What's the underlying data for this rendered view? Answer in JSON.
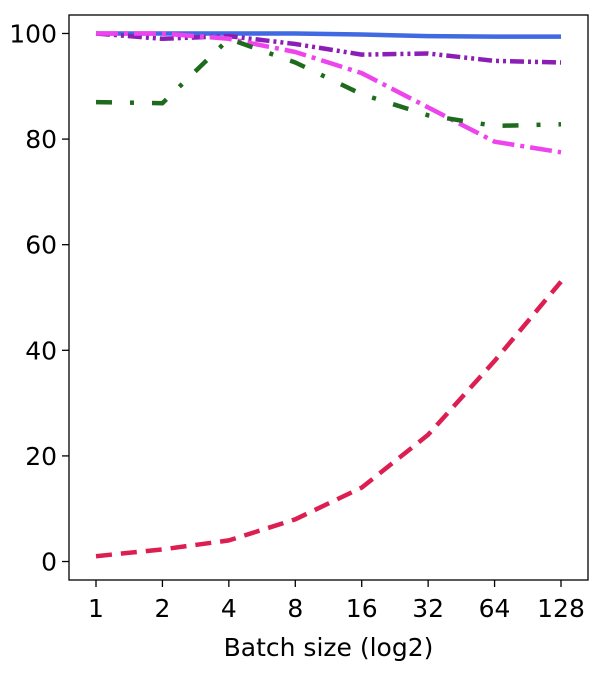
{
  "chart_data": {
    "type": "line",
    "title": "",
    "xlabel": "Batch size (log2)",
    "ylabel": "",
    "x_scale": "log2",
    "x": [
      1,
      2,
      4,
      8,
      16,
      32,
      64,
      128
    ],
    "x_tick_labels": [
      "1",
      "2",
      "4",
      "8",
      "16",
      "32",
      "64",
      "128"
    ],
    "ylim": [
      -3.5,
      103.5
    ],
    "y_ticks": [
      0,
      20,
      40,
      60,
      80,
      100
    ],
    "y_tick_labels": [
      "0",
      "20",
      "40",
      "60",
      "80",
      "100"
    ],
    "grid": false,
    "legend": "none",
    "series": [
      {
        "color": "#4169e1",
        "dash": "solid",
        "values": [
          100,
          100,
          100,
          100,
          99.8,
          99.5,
          99.4,
          99.4
        ]
      },
      {
        "color": "#8b1fb5",
        "dash": "dash-dot-dot",
        "values": [
          100,
          99,
          99.5,
          98,
          96,
          96.2,
          94.8,
          94.5
        ]
      },
      {
        "color": "#ee44ee",
        "dash": "dash-dot",
        "values": [
          100,
          100,
          99,
          96.5,
          92.5,
          86,
          79.5,
          77.5
        ]
      },
      {
        "color": "#1e6b1e",
        "dash": "dash-dot-sparse",
        "values": [
          87,
          86.8,
          99,
          94.5,
          88.5,
          84.5,
          82.5,
          82.8
        ]
      },
      {
        "color": "#dc1e50",
        "dash": "dashed",
        "values": [
          1,
          2.3,
          4,
          8,
          14,
          24,
          38,
          53
        ]
      }
    ]
  }
}
